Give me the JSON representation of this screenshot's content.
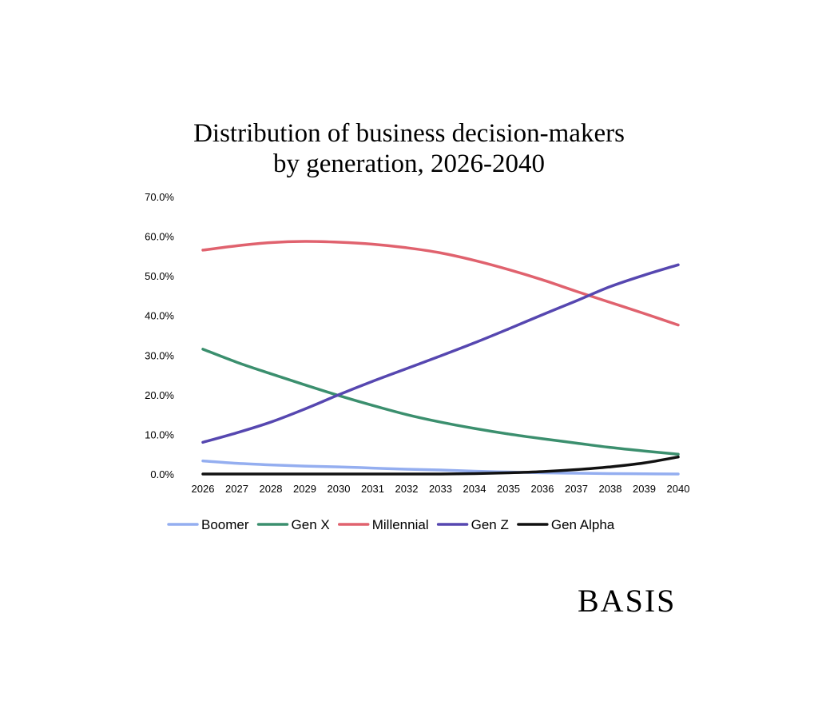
{
  "chart_data": {
    "type": "line",
    "title": [
      "Distribution of business decision-makers",
      "by generation, 2026-2040"
    ],
    "xlabel": "",
    "ylabel": "",
    "x": [
      "2026",
      "2027",
      "2028",
      "2029",
      "2030",
      "2031",
      "2032",
      "2033",
      "2034",
      "2035",
      "2036",
      "2037",
      "2038",
      "2039",
      "2040"
    ],
    "ylim": [
      0,
      70
    ],
    "yticks": [
      "0.0%",
      "10.0%",
      "20.0%",
      "30.0%",
      "40.0%",
      "50.0%",
      "60.0%",
      "70.0%"
    ],
    "grid": false,
    "legend_position": "bottom",
    "series": [
      {
        "name": "Boomer",
        "color": "#94AEF0",
        "values": [
          3.3,
          2.7,
          2.3,
          2.0,
          1.8,
          1.5,
          1.2,
          1.0,
          0.7,
          0.5,
          0.3,
          0.2,
          0.1,
          0.05,
          0.0
        ]
      },
      {
        "name": "Gen X",
        "color": "#3B8F6E",
        "values": [
          31.5,
          28.2,
          25.3,
          22.5,
          19.8,
          17.3,
          15.0,
          13.1,
          11.5,
          10.1,
          8.9,
          7.8,
          6.7,
          5.8,
          5.0
        ]
      },
      {
        "name": "Millennial",
        "color": "#E0626E",
        "values": [
          56.5,
          57.6,
          58.4,
          58.7,
          58.5,
          58.0,
          57.1,
          55.8,
          53.9,
          51.6,
          49.0,
          46.1,
          43.3,
          40.5,
          37.6
        ]
      },
      {
        "name": "Gen Z",
        "color": "#5647B0",
        "values": [
          8.0,
          10.4,
          13.1,
          16.4,
          20.0,
          23.4,
          26.6,
          29.8,
          33.1,
          36.6,
          40.2,
          43.7,
          47.3,
          50.2,
          52.8
        ]
      },
      {
        "name": "Gen Alpha",
        "color": "#111111",
        "values": [
          0,
          0,
          0,
          0,
          0,
          0,
          0,
          0,
          0.1,
          0.3,
          0.6,
          1.1,
          1.8,
          2.8,
          4.3
        ]
      }
    ]
  },
  "logo": "BASIS"
}
